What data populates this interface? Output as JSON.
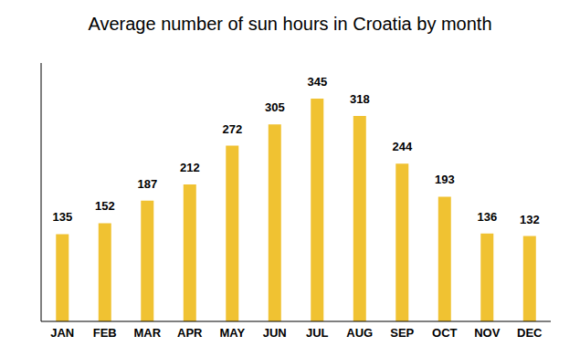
{
  "chart_data": {
    "type": "bar",
    "title": "Average number of sun hours in Croatia by month",
    "categories": [
      "JAN",
      "FEB",
      "MAR",
      "APR",
      "MAY",
      "JUN",
      "JUL",
      "AUG",
      "SEP",
      "OCT",
      "NOV",
      "DEC"
    ],
    "values": [
      135,
      152,
      187,
      212,
      272,
      305,
      345,
      318,
      244,
      193,
      136,
      132
    ],
    "color": "#f0c232",
    "ylim": [
      0,
      400
    ],
    "grid": false,
    "data_labels": true,
    "tick_labels": "x"
  }
}
